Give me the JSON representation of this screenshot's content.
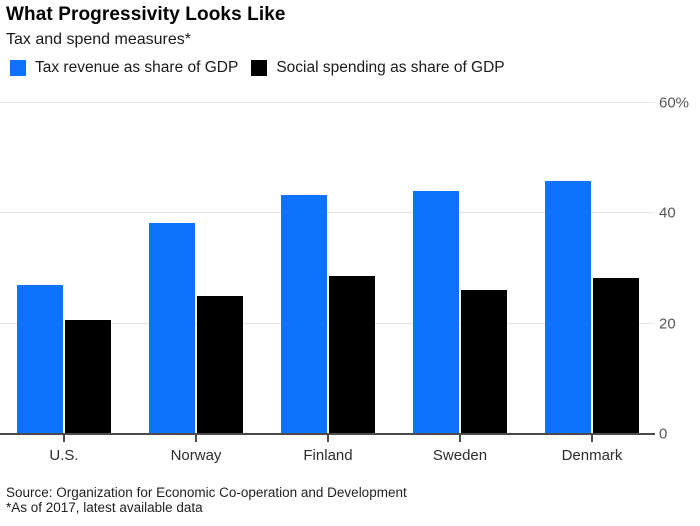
{
  "header": {
    "title": "What Progressivity Looks Like",
    "subtitle": "Tax and spend measures*"
  },
  "legend": {
    "items": [
      {
        "label": "Tax revenue as share of GDP",
        "color": "#0d73ff"
      },
      {
        "label": "Social spending as share of GDP",
        "color": "#000000"
      }
    ]
  },
  "chart_data": {
    "type": "bar",
    "categories": [
      "U.S.",
      "Norway",
      "Finland",
      "Sweden",
      "Denmark"
    ],
    "series": [
      {
        "name": "Tax revenue as share of GDP",
        "color": "#0d73ff",
        "values": [
          27.1,
          38.2,
          43.3,
          44.0,
          45.9
        ]
      },
      {
        "name": "Social spending as share of GDP",
        "color": "#000000",
        "values": [
          20.7,
          25.0,
          28.7,
          26.1,
          28.3
        ]
      }
    ],
    "title": "What Progressivity Looks Like",
    "subtitle": "Tax and spend measures*",
    "xlabel": "",
    "ylabel": "",
    "ylim": [
      0,
      60
    ],
    "yticks": [
      {
        "value": 0,
        "label": "0"
      },
      {
        "value": 20,
        "label": "20"
      },
      {
        "value": 40,
        "label": "40"
      },
      {
        "value": 60,
        "label": "60%"
      }
    ],
    "grid": "horizontal",
    "legend_position": "top",
    "value_axis_side": "right"
  },
  "footer": {
    "source": "Source: Organization for Economic Co-operation and Development",
    "note": "*As of 2017, latest available data"
  }
}
